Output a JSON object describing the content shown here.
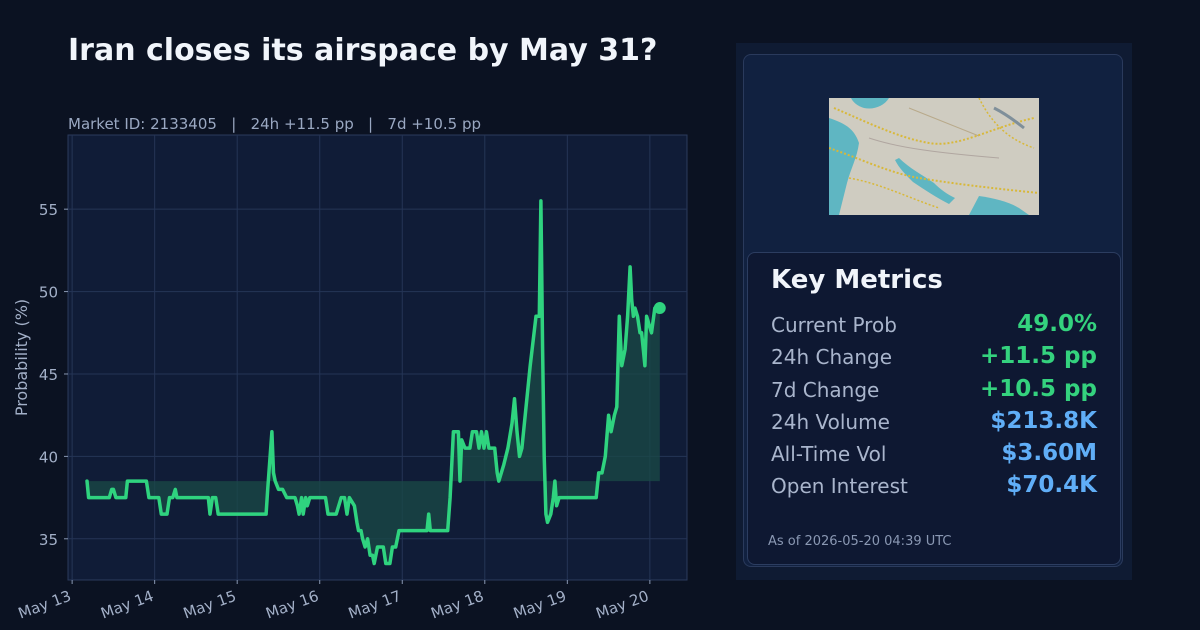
{
  "header": {
    "title": "Iran closes its airspace by May 31?",
    "subtitle": "Market ID: 2133405   |   24h +11.5 pp   |   7d +10.5 pp"
  },
  "colors": {
    "background": "#0b1222",
    "plot_bg": "#101c37",
    "line": "#2fd37f",
    "fill": "#1a4a47",
    "green_value": "#34d27e",
    "blue_value": "#60aef7"
  },
  "chart_data": {
    "type": "line",
    "ylabel": "Probability (%)",
    "xlabel": "",
    "ylim": [
      32.5,
      59.5
    ],
    "yticks": [
      35,
      40,
      45,
      50,
      55
    ],
    "x_unit": "days since May 13 00:00",
    "xlim": [
      -0.05,
      7.45
    ],
    "xticks": [
      0,
      1,
      2,
      3,
      4,
      5,
      6,
      7
    ],
    "xtick_labels": [
      "May 13",
      "May 14",
      "May 15",
      "May 16",
      "May 17",
      "May 18",
      "May 19",
      "May 20"
    ],
    "baseline": 38.5,
    "grid": true,
    "end_marker": true,
    "series": [
      {
        "name": "",
        "points": [
          [
            0.18,
            38.5
          ],
          [
            0.2,
            37.5
          ],
          [
            0.3,
            37.5
          ],
          [
            0.45,
            37.5
          ],
          [
            0.48,
            38
          ],
          [
            0.5,
            38
          ],
          [
            0.53,
            37.5
          ],
          [
            0.65,
            37.5
          ],
          [
            0.67,
            38.5
          ],
          [
            0.78,
            38.5
          ],
          [
            0.9,
            38.5
          ],
          [
            0.93,
            37.5
          ],
          [
            1.0,
            37.5
          ],
          [
            1.05,
            37.5
          ],
          [
            1.08,
            36.5
          ],
          [
            1.15,
            36.5
          ],
          [
            1.18,
            37.5
          ],
          [
            1.22,
            37.5
          ],
          [
            1.25,
            38
          ],
          [
            1.27,
            37.5
          ],
          [
            1.4,
            37.5
          ],
          [
            1.65,
            37.5
          ],
          [
            1.67,
            36.5
          ],
          [
            1.7,
            37.5
          ],
          [
            1.74,
            37.5
          ],
          [
            1.77,
            36.5
          ],
          [
            2.0,
            36.5
          ],
          [
            2.2,
            36.5
          ],
          [
            2.35,
            36.5
          ],
          [
            2.37,
            38
          ],
          [
            2.42,
            41.5
          ],
          [
            2.44,
            39
          ],
          [
            2.46,
            38.5
          ],
          [
            2.5,
            38
          ],
          [
            2.55,
            38
          ],
          [
            2.6,
            37.5
          ],
          [
            2.62,
            37.5
          ],
          [
            2.7,
            37.5
          ],
          [
            2.73,
            37
          ],
          [
            2.75,
            36.5
          ],
          [
            2.78,
            37.5
          ],
          [
            2.8,
            36.5
          ],
          [
            2.83,
            37.5
          ],
          [
            2.85,
            37
          ],
          [
            2.88,
            37.5
          ],
          [
            3.0,
            37.5
          ],
          [
            3.07,
            37.5
          ],
          [
            3.1,
            36.5
          ],
          [
            3.2,
            36.5
          ],
          [
            3.26,
            37.5
          ],
          [
            3.3,
            37.5
          ],
          [
            3.33,
            36.5
          ],
          [
            3.36,
            37.5
          ],
          [
            3.42,
            37
          ],
          [
            3.45,
            36
          ],
          [
            3.47,
            35.5
          ],
          [
            3.5,
            35.5
          ],
          [
            3.52,
            35
          ],
          [
            3.55,
            34.5
          ],
          [
            3.58,
            35
          ],
          [
            3.61,
            34
          ],
          [
            3.64,
            34
          ],
          [
            3.66,
            33.5
          ],
          [
            3.7,
            34.5
          ],
          [
            3.77,
            34.5
          ],
          [
            3.8,
            33.5
          ],
          [
            3.85,
            33.5
          ],
          [
            3.88,
            34.5
          ],
          [
            3.92,
            34.5
          ],
          [
            3.96,
            35.5
          ],
          [
            4.0,
            35.5
          ],
          [
            4.2,
            35.5
          ],
          [
            4.3,
            35.5
          ],
          [
            4.32,
            36.5
          ],
          [
            4.34,
            35.5
          ],
          [
            4.5,
            35.5
          ],
          [
            4.55,
            35.5
          ],
          [
            4.58,
            37.5
          ],
          [
            4.62,
            41.5
          ],
          [
            4.68,
            41.5
          ],
          [
            4.7,
            38.5
          ],
          [
            4.72,
            41
          ],
          [
            4.76,
            40.5
          ],
          [
            4.82,
            40.5
          ],
          [
            4.85,
            41.5
          ],
          [
            4.9,
            41.5
          ],
          [
            4.93,
            40.5
          ],
          [
            4.96,
            41.5
          ],
          [
            4.99,
            40.5
          ],
          [
            5.02,
            41.5
          ],
          [
            5.05,
            40.5
          ],
          [
            5.12,
            40.5
          ],
          [
            5.15,
            39
          ],
          [
            5.17,
            38.5
          ],
          [
            5.2,
            39
          ],
          [
            5.23,
            39.5
          ],
          [
            5.28,
            40.5
          ],
          [
            5.33,
            42
          ],
          [
            5.36,
            43.5
          ],
          [
            5.39,
            41.5
          ],
          [
            5.42,
            40
          ],
          [
            5.45,
            40.5
          ],
          [
            5.55,
            45.5
          ],
          [
            5.62,
            48.5
          ],
          [
            5.66,
            48.5
          ],
          [
            5.68,
            55.5
          ],
          [
            5.7,
            46.5
          ],
          [
            5.72,
            40
          ],
          [
            5.74,
            36.5
          ],
          [
            5.76,
            36
          ],
          [
            5.8,
            36.5
          ],
          [
            5.83,
            37.5
          ],
          [
            5.85,
            38.5
          ],
          [
            5.87,
            37
          ],
          [
            5.9,
            37.5
          ],
          [
            6.0,
            37.5
          ],
          [
            6.2,
            37.5
          ],
          [
            6.35,
            37.5
          ],
          [
            6.38,
            39
          ],
          [
            6.42,
            39
          ],
          [
            6.46,
            40
          ],
          [
            6.5,
            42.5
          ],
          [
            6.53,
            41.5
          ],
          [
            6.57,
            42.5
          ],
          [
            6.6,
            43
          ],
          [
            6.63,
            48.5
          ],
          [
            6.66,
            45.5
          ],
          [
            6.7,
            46.5
          ],
          [
            6.73,
            48.5
          ],
          [
            6.76,
            51.5
          ],
          [
            6.78,
            49.5
          ],
          [
            6.8,
            48.5
          ],
          [
            6.82,
            49
          ],
          [
            6.85,
            48.5
          ],
          [
            6.88,
            47.5
          ],
          [
            6.9,
            47.5
          ],
          [
            6.92,
            46.5
          ],
          [
            6.94,
            45.5
          ],
          [
            6.96,
            48.5
          ],
          [
            6.99,
            48
          ],
          [
            7.02,
            47.5
          ],
          [
            7.06,
            49
          ],
          [
            7.12,
            49
          ]
        ]
      }
    ]
  },
  "panel": {
    "map_alt_icon": "iran-airspace-map-thumbnail",
    "metrics_title": "Key Metrics",
    "metrics": [
      {
        "label": "Current Prob",
        "value": "49.0%",
        "tone": "green"
      },
      {
        "label": "24h Change",
        "value": "+11.5 pp",
        "tone": "green"
      },
      {
        "label": "7d Change",
        "value": "+10.5 pp",
        "tone": "green"
      },
      {
        "label": "24h Volume",
        "value": "$213.8K",
        "tone": "blue"
      },
      {
        "label": "All-Time Vol",
        "value": "$3.60M",
        "tone": "blue"
      },
      {
        "label": "Open Interest",
        "value": "$70.4K",
        "tone": "blue"
      }
    ],
    "as_of": "As of 2026-05-20 04:39 UTC"
  }
}
